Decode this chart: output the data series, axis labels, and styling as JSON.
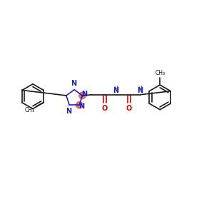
{
  "bg_color": "#ffffff",
  "bond_color": "#1a1a1a",
  "n_color": "#2222bb",
  "o_color": "#dd0000",
  "n_highlight": "#e07070",
  "fig_width": 3.0,
  "fig_height": 3.0,
  "dpi": 100,
  "fs": 7.0,
  "fs_small": 5.5,
  "lw": 1.2,
  "xlim": [
    0,
    12
  ],
  "ylim": [
    0,
    9
  ]
}
